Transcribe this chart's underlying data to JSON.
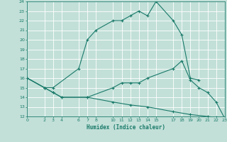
{
  "xlabel": "Humidex (Indice chaleur)",
  "bg_color": "#c2e0d8",
  "line_color": "#1a7a6a",
  "grid_color": "#ffffff",
  "xlim": [
    0,
    23
  ],
  "ylim": [
    12,
    24
  ],
  "xticks": [
    0,
    2,
    3,
    4,
    6,
    7,
    8,
    10,
    11,
    12,
    13,
    14,
    15,
    17,
    18,
    19,
    20,
    21,
    22,
    23
  ],
  "yticks": [
    12,
    13,
    14,
    15,
    16,
    17,
    18,
    19,
    20,
    21,
    22,
    23,
    24
  ],
  "curve1_x": [
    0,
    2,
    3,
    6,
    7,
    8,
    10,
    11,
    12,
    13,
    14,
    15,
    17,
    18,
    19,
    20
  ],
  "curve1_y": [
    16,
    15,
    15,
    17,
    20,
    21,
    22,
    22,
    22.5,
    23,
    22.5,
    24,
    22,
    20.5,
    16,
    15.8
  ],
  "curve2_x": [
    0,
    2,
    3,
    4,
    7,
    10,
    11,
    12,
    13,
    14,
    17,
    18,
    19,
    20,
    21,
    22,
    23
  ],
  "curve2_y": [
    16,
    15,
    14.5,
    14,
    14,
    15,
    15.5,
    15.5,
    15.5,
    16,
    17,
    17.8,
    15.8,
    15,
    14.5,
    13.5,
    11.8
  ],
  "curve3_x": [
    0,
    2,
    3,
    4,
    7,
    10,
    12,
    14,
    17,
    19,
    21,
    22,
    23
  ],
  "curve3_y": [
    16,
    15,
    14.5,
    14,
    14,
    13.5,
    13.2,
    13.0,
    12.5,
    12.2,
    12.0,
    11.9,
    11.7
  ]
}
